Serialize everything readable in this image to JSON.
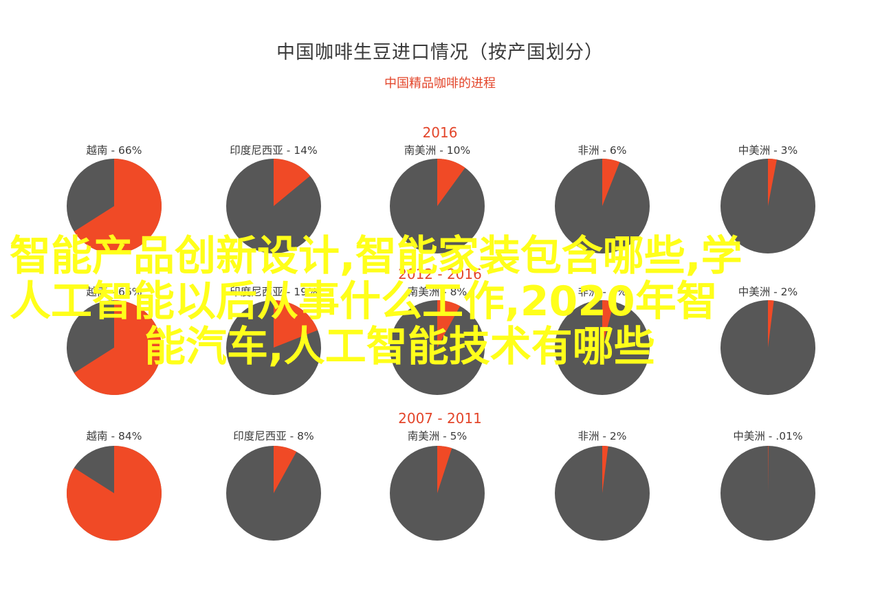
{
  "chart_data": {
    "type": "pie",
    "title": "中国咖啡生豆进口情况（按产国划分）",
    "subtitle": "中国精品咖啡的进程",
    "colors": {
      "highlight": "#f04a26",
      "rest": "#575757"
    },
    "groups": [
      {
        "period": "2016",
        "slices": [
          {
            "label": "越南 - 66%",
            "value": 66
          },
          {
            "label": "印度尼西亚 - 14%",
            "value": 14
          },
          {
            "label": "南美洲 - 10%",
            "value": 10
          },
          {
            "label": "非洲 - 6%",
            "value": 6
          },
          {
            "label": "中美洲 - 3%",
            "value": 3
          }
        ]
      },
      {
        "period": "2012 - 2016",
        "slices": [
          {
            "label": "越南 - 66%",
            "value": 66
          },
          {
            "label": "印度尼西亚 - 19%",
            "value": 19
          },
          {
            "label": "南美洲 - 8%",
            "value": 8
          },
          {
            "label": "非洲 - 4%",
            "value": 4
          },
          {
            "label": "中美洲 - 2%",
            "value": 2
          }
        ]
      },
      {
        "period": "2007 - 2011",
        "slices": [
          {
            "label": "越南 - 84%",
            "value": 84
          },
          {
            "label": "印度尼西亚 - 8%",
            "value": 8
          },
          {
            "label": "南美洲 - 5%",
            "value": 5
          },
          {
            "label": "非洲 - 2%",
            "value": 2
          },
          {
            "label": "中美洲 - .01%",
            "value": 0.01
          }
        ]
      }
    ]
  },
  "watermark": {
    "lines": [
      "智能产品创新设计,智能家装包含哪些,学",
      "人工智能以后从事什么工作,2020年智",
      "能汽车,人工智能技术有哪些"
    ]
  }
}
